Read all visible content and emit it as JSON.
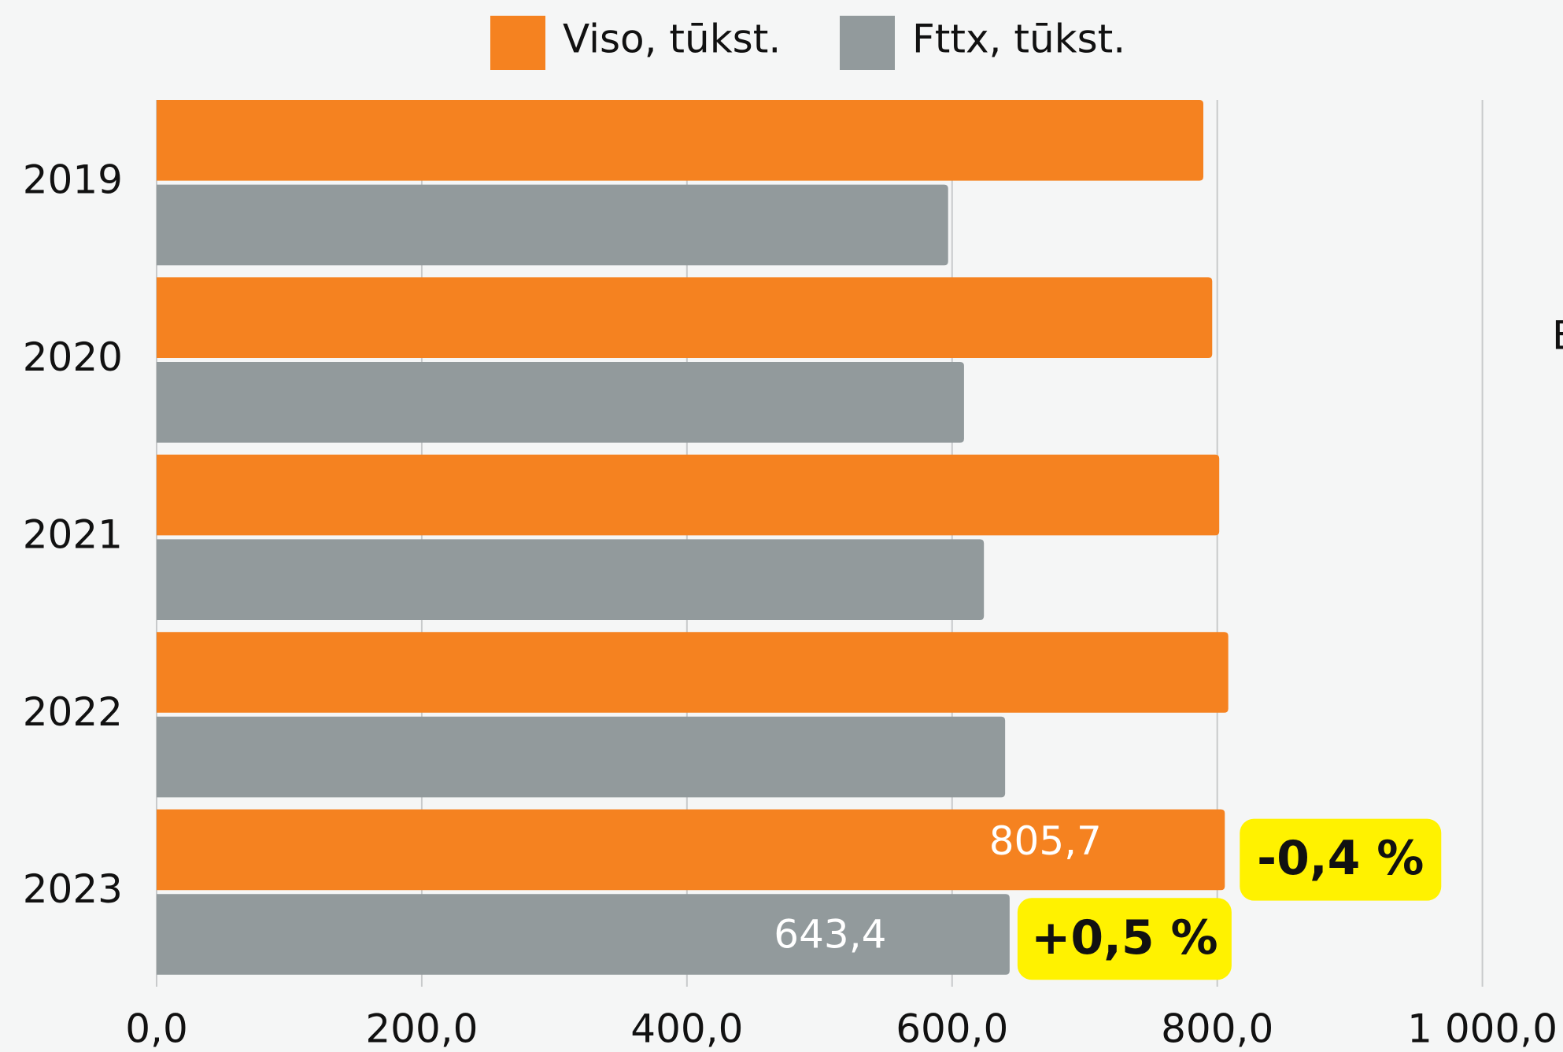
{
  "chart_data": {
    "type": "hbar",
    "categories": [
      "2019",
      "2020",
      "2021",
      "2022",
      "2023"
    ],
    "series": [
      {
        "name": "Viso, tūkst.",
        "color": "#f58220",
        "values": [
          789.5,
          796.2,
          801.5,
          808.3,
          805.7
        ],
        "value_labels": [
          null,
          null,
          null,
          null,
          "805,7"
        ]
      },
      {
        "name": "Fttx, tūkst.",
        "color": "#929a9c",
        "values": [
          597,
          609,
          624,
          640,
          643.4
        ],
        "value_labels": [
          null,
          null,
          null,
          null,
          "643,4"
        ]
      }
    ],
    "annotations": [
      "-0,4 %",
      "+0,5 %"
    ],
    "xlim": [
      0,
      1000
    ],
    "xticks": [
      {
        "value": 0,
        "label": "0,0"
      },
      {
        "value": 200,
        "label": "200,0"
      },
      {
        "value": 400,
        "label": "400,0"
      },
      {
        "value": 600,
        "label": "600,0"
      },
      {
        "value": 800,
        "label": "800,0"
      },
      {
        "value": 1000,
        "label": "1 000,0"
      }
    ],
    "grid": true,
    "legend": "top"
  },
  "cropped_text": "E"
}
